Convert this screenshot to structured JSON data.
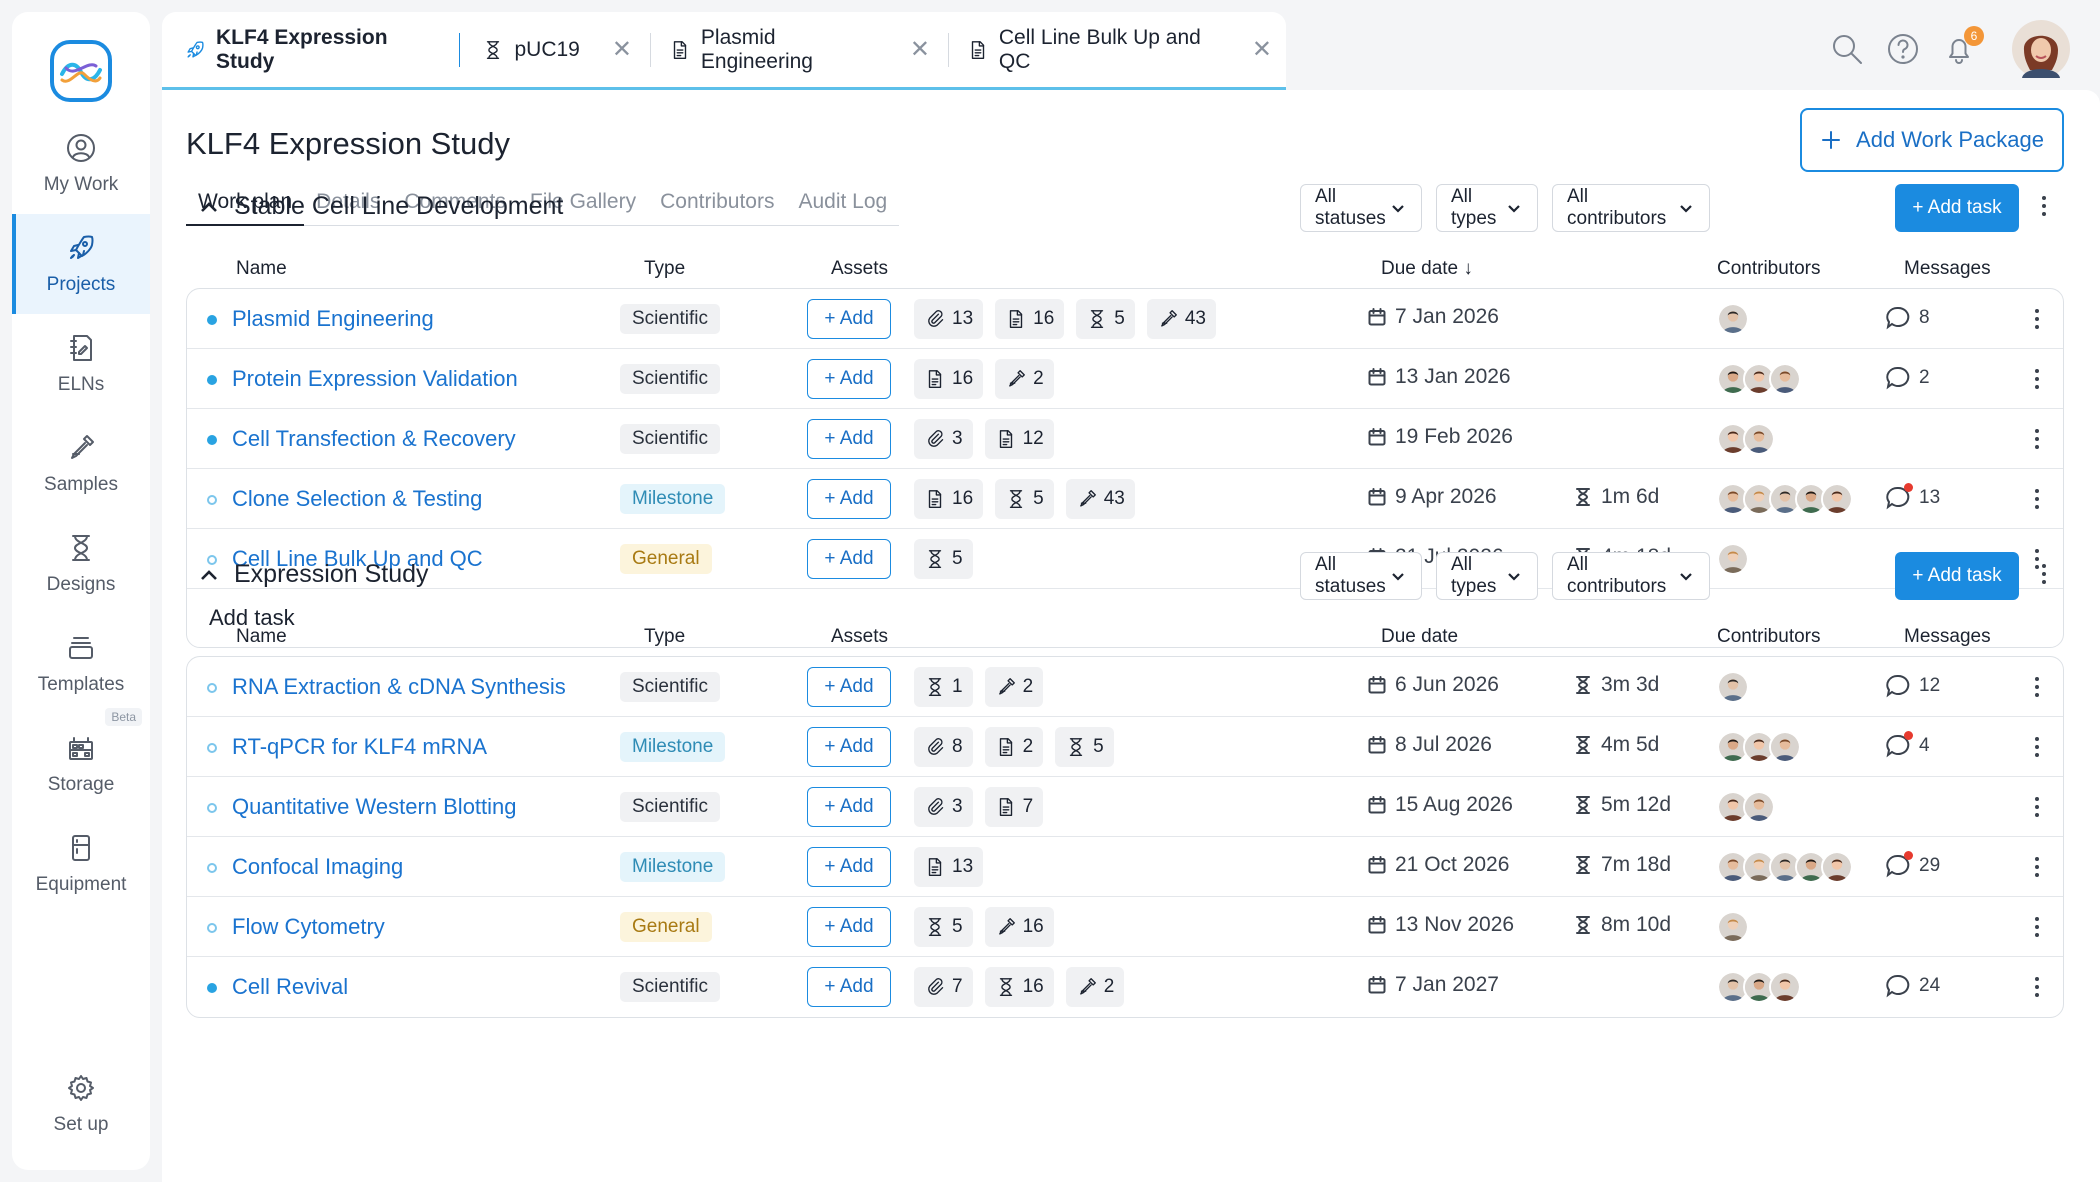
{
  "sidebar": {
    "items": [
      {
        "label": "My Work",
        "icon": "user-circle-icon",
        "name": "sidebar-item-my-work",
        "active": false
      },
      {
        "label": "Projects",
        "icon": "rocket-icon",
        "name": "sidebar-item-projects",
        "active": true
      },
      {
        "label": "ELNs",
        "icon": "notebook-icon",
        "name": "sidebar-item-elns",
        "active": false
      },
      {
        "label": "Samples",
        "icon": "pipette-icon",
        "name": "sidebar-item-samples",
        "active": false
      },
      {
        "label": "Designs",
        "icon": "hourglass-icon",
        "name": "sidebar-item-designs",
        "active": false
      },
      {
        "label": "Templates",
        "icon": "stack-icon",
        "name": "sidebar-item-templates",
        "active": false
      },
      {
        "label": "Storage",
        "icon": "storage-rack-icon",
        "name": "sidebar-item-storage",
        "active": false,
        "badge": "Beta"
      },
      {
        "label": "Equipment",
        "icon": "fridge-icon",
        "name": "sidebar-item-equipment",
        "active": false
      }
    ],
    "setup": {
      "label": "Set up",
      "icon": "gear-icon"
    }
  },
  "tabs": [
    {
      "label": "KLF4 Expression Study",
      "icon": "rocket-icon",
      "closable": false
    },
    {
      "label": "pUC19",
      "icon": "hourglass-icon",
      "closable": true
    },
    {
      "label": "Plasmid Engineering",
      "icon": "document-icon",
      "closable": true
    },
    {
      "label": "Cell Line Bulk Up and QC",
      "icon": "document-icon",
      "closable": true
    }
  ],
  "header": {
    "notification_count": "6"
  },
  "page": {
    "title": "KLF4 Expression Study",
    "add_work_package": "Add Work Package",
    "subtabs": [
      "Work plan",
      "Details",
      "Comments",
      "File Gallery",
      "Contributors",
      "Audit Log"
    ],
    "active_subtab": 0
  },
  "columns": {
    "name": "Name",
    "type": "Type",
    "assets": "Assets",
    "due": "Due date",
    "contributors": "Contributors",
    "messages": "Messages"
  },
  "filters": {
    "status": "All statuses",
    "type": "All types",
    "contributors": "All contributors"
  },
  "add_task_button": "+ Add task",
  "add_label": "+ Add",
  "add_task_row": "Add task",
  "colors": {
    "accent": "#1b8be0",
    "link": "#1a73cf",
    "badge_general": "#fcf4dc",
    "badge_milestone": "#e4f4fb",
    "badge_scientific": "#f0f1f3"
  },
  "sections": [
    {
      "title": "Stable Cell Line Development",
      "due_sort_arrow": "↓",
      "show_add_task_row": true,
      "tasks": [
        {
          "name": "Plasmid Engineering",
          "type": "Scientific",
          "status": "filled",
          "assets": [
            {
              "icon": "paperclip-icon",
              "count": "13"
            },
            {
              "icon": "document-icon",
              "count": "16"
            },
            {
              "icon": "hourglass-icon",
              "count": "5"
            },
            {
              "icon": "pipette-icon",
              "count": "43"
            }
          ],
          "due": "7 Jan 2026",
          "duration": "",
          "contributors": 1,
          "messages": "8",
          "unread": false
        },
        {
          "name": "Protein Expression Validation",
          "type": "Scientific",
          "status": "filled",
          "assets": [
            {
              "icon": "document-icon",
              "count": "16"
            },
            {
              "icon": "pipette-icon",
              "count": "2"
            }
          ],
          "due": "13 Jan 2026",
          "duration": "",
          "contributors": 3,
          "messages": "2",
          "unread": false
        },
        {
          "name": "Cell Transfection & Recovery",
          "type": "Scientific",
          "status": "filled",
          "assets": [
            {
              "icon": "paperclip-icon",
              "count": "3"
            },
            {
              "icon": "document-icon",
              "count": "12"
            }
          ],
          "due": "19 Feb 2026",
          "duration": "",
          "contributors": 2,
          "messages": "",
          "unread": false
        },
        {
          "name": "Clone Selection & Testing",
          "type": "Milestone",
          "status": "hollow",
          "assets": [
            {
              "icon": "document-icon",
              "count": "16"
            },
            {
              "icon": "hourglass-icon",
              "count": "5"
            },
            {
              "icon": "pipette-icon",
              "count": "43"
            }
          ],
          "due": "9 Apr 2026",
          "duration": "1m 6d",
          "contributors": 5,
          "messages": "13",
          "unread": true
        },
        {
          "name": "Cell Line Bulk Up and QC",
          "type": "General",
          "status": "hollow",
          "assets": [
            {
              "icon": "hourglass-icon",
              "count": "5"
            }
          ],
          "due": "21 Jul 2026",
          "duration": "4m 18d",
          "contributors": 1,
          "messages": "",
          "unread": false
        }
      ]
    },
    {
      "title": "Expression Study",
      "due_sort_arrow": "",
      "show_add_task_row": false,
      "tasks": [
        {
          "name": "RNA Extraction & cDNA Synthesis",
          "type": "Scientific",
          "status": "hollow",
          "assets": [
            {
              "icon": "hourglass-icon",
              "count": "1"
            },
            {
              "icon": "pipette-icon",
              "count": "2"
            }
          ],
          "due": "6 Jun 2026",
          "duration": "3m 3d",
          "contributors": 1,
          "messages": "12",
          "unread": false
        },
        {
          "name": "RT-qPCR for KLF4 mRNA",
          "type": "Milestone",
          "status": "hollow",
          "assets": [
            {
              "icon": "paperclip-icon",
              "count": "8"
            },
            {
              "icon": "document-icon",
              "count": "2"
            },
            {
              "icon": "hourglass-icon",
              "count": "5"
            }
          ],
          "due": "8 Jul 2026",
          "duration": "4m 5d",
          "contributors": 3,
          "messages": "4",
          "unread": true
        },
        {
          "name": "Quantitative Western Blotting",
          "type": "Scientific",
          "status": "hollow",
          "assets": [
            {
              "icon": "paperclip-icon",
              "count": "3"
            },
            {
              "icon": "document-icon",
              "count": "7"
            }
          ],
          "due": "15 Aug 2026",
          "duration": "5m 12d",
          "contributors": 2,
          "messages": "",
          "unread": false
        },
        {
          "name": "Confocal Imaging",
          "type": "Milestone",
          "status": "hollow",
          "assets": [
            {
              "icon": "document-icon",
              "count": "13"
            }
          ],
          "due": "21 Oct 2026",
          "duration": "7m 18d",
          "contributors": 5,
          "messages": "29",
          "unread": true
        },
        {
          "name": "Flow Cytometry",
          "type": "General",
          "status": "hollow",
          "assets": [
            {
              "icon": "hourglass-icon",
              "count": "5"
            },
            {
              "icon": "pipette-icon",
              "count": "16"
            }
          ],
          "due": "13 Nov 2026",
          "duration": "8m 10d",
          "contributors": 1,
          "messages": "",
          "unread": false
        },
        {
          "name": "Cell Revival",
          "type": "Scientific",
          "status": "filled",
          "assets": [
            {
              "icon": "paperclip-icon",
              "count": "7"
            },
            {
              "icon": "hourglass-icon",
              "count": "16"
            },
            {
              "icon": "pipette-icon",
              "count": "2"
            }
          ],
          "due": "7 Jan 2027",
          "duration": "",
          "contributors": 3,
          "messages": "24",
          "unread": false
        }
      ]
    }
  ]
}
